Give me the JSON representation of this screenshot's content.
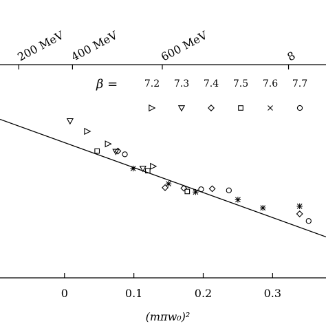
{
  "chart_data": {
    "type": "scatter",
    "x_axis": {
      "label": "(mπw₀)²",
      "range": [
        -0.093,
        0.377
      ],
      "ticks": [
        {
          "value": 0.0,
          "label": "0"
        },
        {
          "value": 0.1,
          "label": "0.1"
        },
        {
          "value": 0.2,
          "label": "0.2"
        },
        {
          "value": 0.3,
          "label": "0.3"
        }
      ]
    },
    "top_axis": {
      "ticks": [
        {
          "value": -0.066,
          "label": "200 MeV"
        },
        {
          "value": 0.0115,
          "label": "400 MeV"
        },
        {
          "value": 0.141,
          "label": "600 MeV"
        },
        {
          "value": 0.323,
          "label": "8"
        }
      ]
    },
    "legend": {
      "title": "β =",
      "entries": [
        {
          "label": "7.2",
          "marker": "triangle-right"
        },
        {
          "label": "7.3",
          "marker": "triangle-down"
        },
        {
          "label": "7.4",
          "marker": "diamond"
        },
        {
          "label": "7.5",
          "marker": "square"
        },
        {
          "label": "7.6",
          "marker": "cross"
        },
        {
          "label": "7.7",
          "marker": "circle"
        }
      ]
    },
    "fit_line": {
      "x": [
        -0.093,
        0.377
      ],
      "y": [
        1.0,
        -1.15
      ]
    },
    "y_range": [
      -1.9,
      2.0
    ],
    "series": [
      {
        "marker": "triangle-right",
        "points": [
          [
            0.033,
            0.78
          ],
          [
            0.063,
            0.55
          ],
          [
            0.128,
            0.14
          ]
        ]
      },
      {
        "marker": "triangle-down",
        "points": [
          [
            0.008,
            0.97
          ],
          [
            0.074,
            0.41
          ],
          [
            0.113,
            0.1
          ]
        ]
      },
      {
        "marker": "diamond",
        "points": [
          [
            0.077,
            0.42
          ],
          [
            0.145,
            -0.25
          ],
          [
            0.172,
            -0.26
          ],
          [
            0.213,
            -0.27
          ],
          [
            0.339,
            -0.73
          ]
        ]
      },
      {
        "marker": "square",
        "points": [
          [
            0.047,
            0.42
          ],
          [
            0.12,
            0.06
          ],
          [
            0.177,
            -0.32
          ]
        ]
      },
      {
        "marker": "asterisk",
        "points": [
          [
            0.099,
            0.1
          ],
          [
            0.15,
            -0.18
          ],
          [
            0.189,
            -0.33
          ],
          [
            0.25,
            -0.47
          ],
          [
            0.286,
            -0.62
          ],
          [
            0.339,
            -0.59
          ]
        ]
      },
      {
        "marker": "circle",
        "points": [
          [
            0.087,
            0.36
          ],
          [
            0.197,
            -0.28
          ],
          [
            0.237,
            -0.3
          ],
          [
            0.352,
            -0.86
          ]
        ]
      }
    ]
  }
}
